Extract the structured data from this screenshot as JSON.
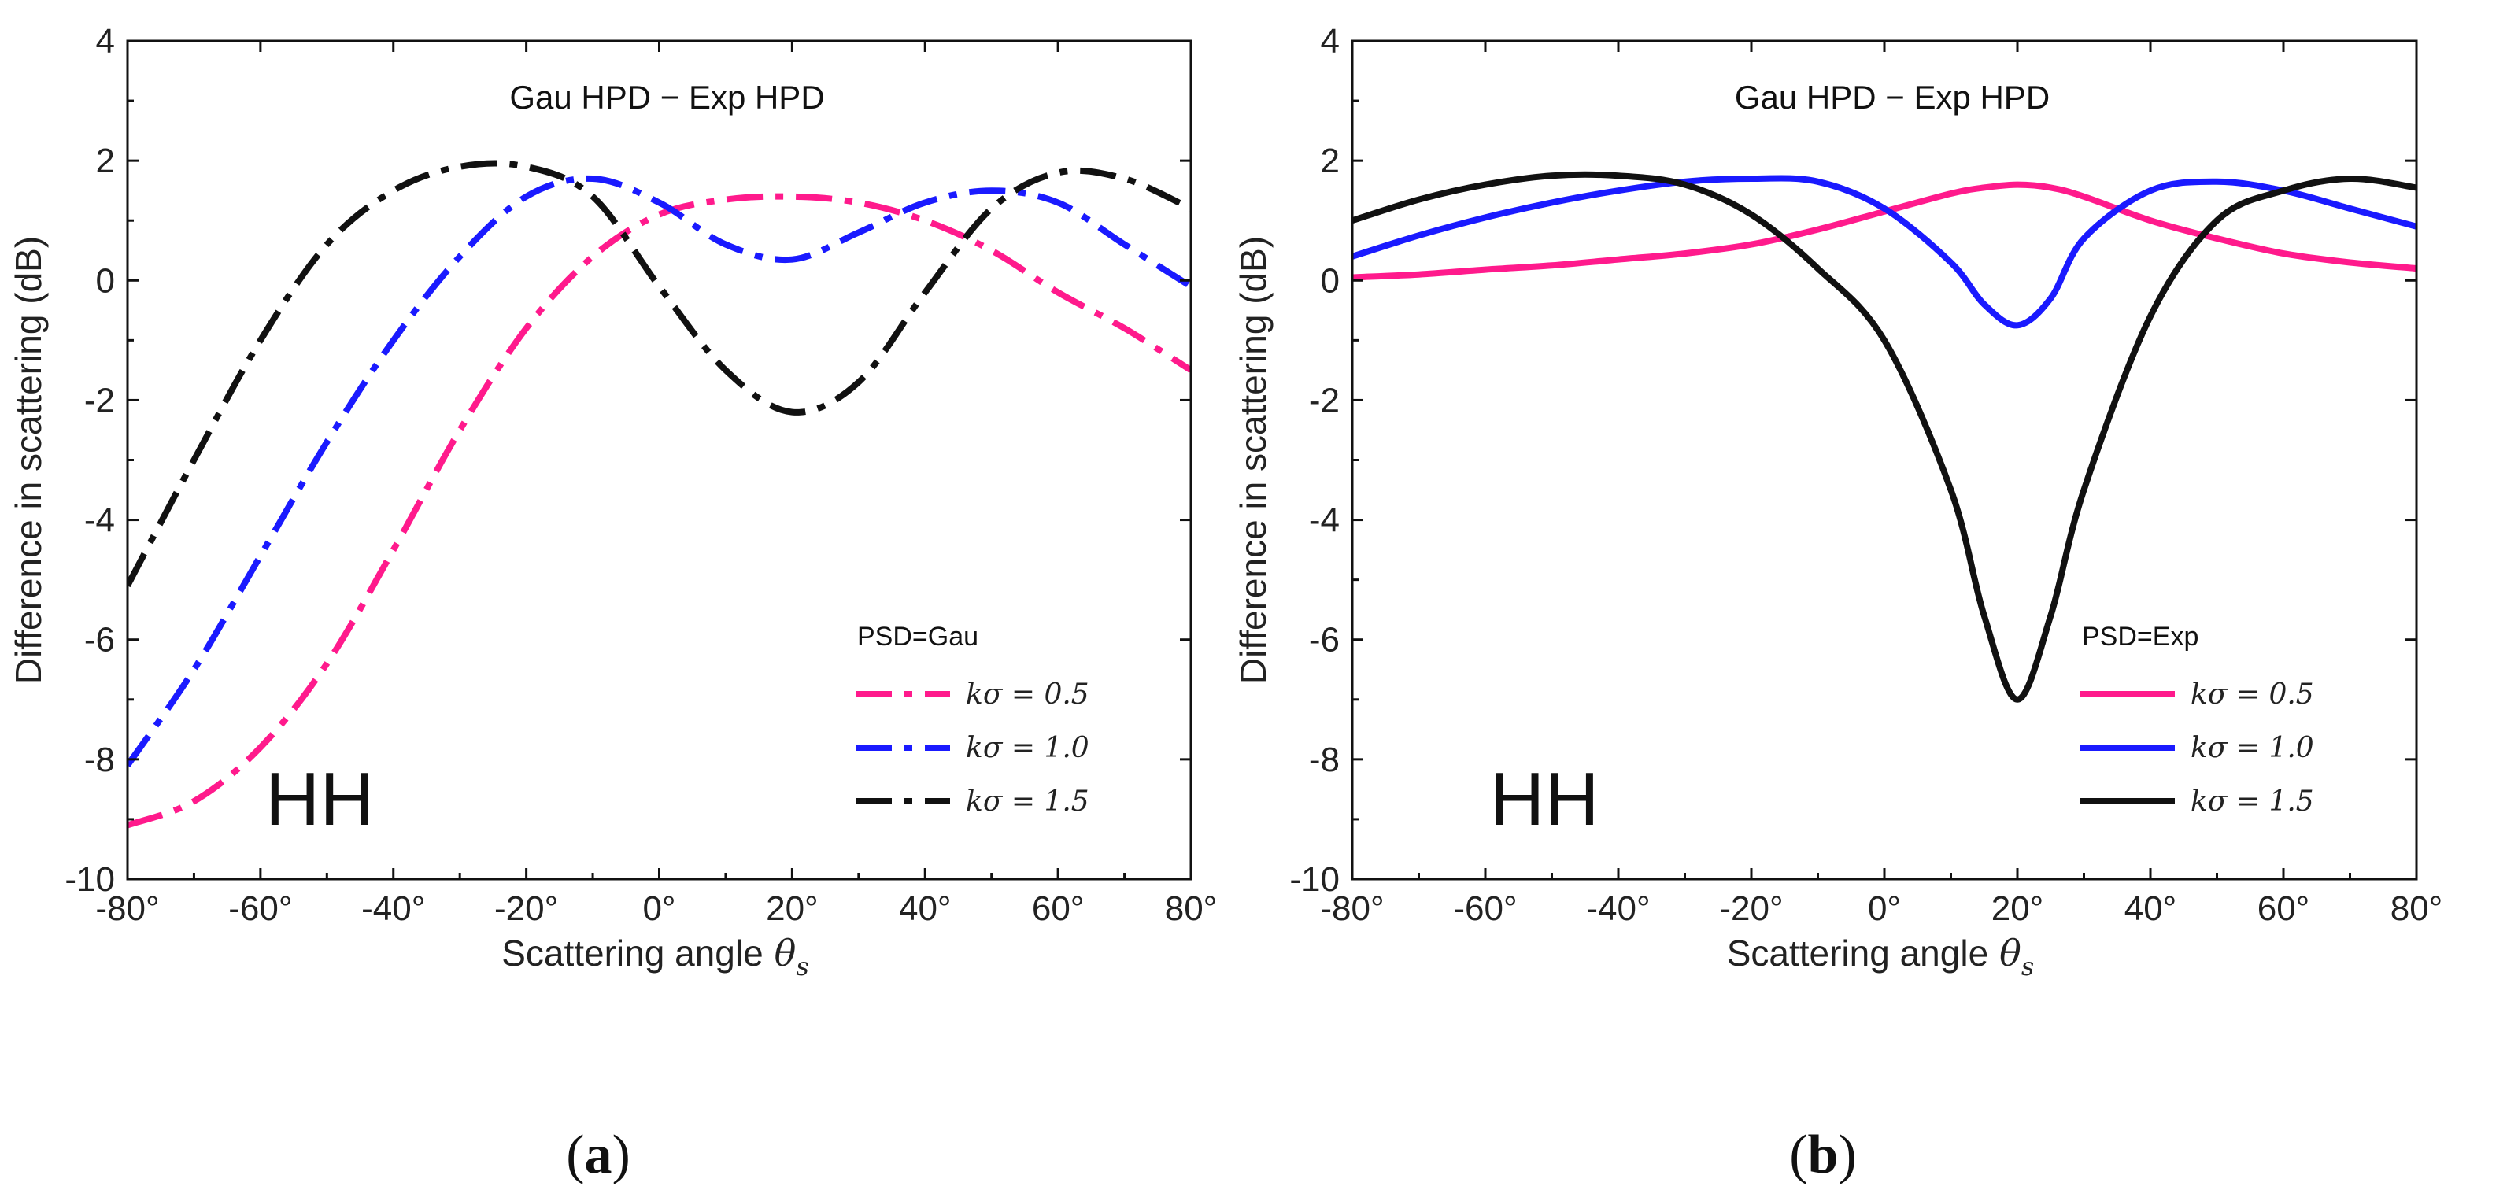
{
  "chart_data": [
    {
      "type": "line",
      "panel_label": "a",
      "title": "Gau HPD − Exp HPD",
      "annotation": "HH",
      "xlabel": "Scattering angle",
      "xlabel_symbol": "θ",
      "xlabel_subscript": "s",
      "ylabel": "Difference in scattering (dB)",
      "xlim": [
        -80,
        80
      ],
      "ylim": [
        -10,
        4
      ],
      "xticks": [
        -80,
        -60,
        -40,
        -20,
        0,
        20,
        40,
        60,
        80
      ],
      "xtick_labels": [
        "-80°",
        "-60°",
        "-40°",
        "-20°",
        "0°",
        "20°",
        "40°",
        "60°",
        "80°"
      ],
      "yticks": [
        -10,
        -8,
        -6,
        -4,
        -2,
        0,
        2,
        4
      ],
      "ytick_labels": [
        "-10",
        "-8",
        "-6",
        "-4",
        "-2",
        "0",
        "2",
        "4"
      ],
      "legend_title": "PSD=Gau",
      "legend_position": "bottom-right",
      "line_style": "dash-dot",
      "x": [
        -80,
        -70,
        -60,
        -50,
        -40,
        -30,
        -20,
        -10,
        0,
        10,
        20,
        30,
        40,
        50,
        60,
        70,
        80
      ],
      "series": [
        {
          "name": "kσ = 0.5",
          "color": "#ff1a8c",
          "values": [
            -9.1,
            -8.7,
            -7.8,
            -6.4,
            -4.5,
            -2.5,
            -0.8,
            0.4,
            1.1,
            1.35,
            1.4,
            1.3,
            1.0,
            0.5,
            -0.2,
            -0.8,
            -1.5
          ]
        },
        {
          "name": "kσ = 1.0",
          "color": "#1a1aff",
          "values": [
            -8.1,
            -6.5,
            -4.6,
            -2.7,
            -1.0,
            0.4,
            1.4,
            1.7,
            1.3,
            0.6,
            0.35,
            0.8,
            1.3,
            1.5,
            1.3,
            0.6,
            -0.1
          ]
        },
        {
          "name": "kσ = 1.5",
          "color": "#111111",
          "values": [
            -5.1,
            -3.0,
            -1.0,
            0.6,
            1.5,
            1.9,
            1.9,
            1.4,
            -0.1,
            -1.5,
            -2.2,
            -1.7,
            -0.2,
            1.2,
            1.8,
            1.7,
            1.2
          ]
        }
      ]
    },
    {
      "type": "line",
      "panel_label": "b",
      "title": "Gau HPD − Exp HPD",
      "annotation": "HH",
      "xlabel": "Scattering angle",
      "xlabel_symbol": "θ",
      "xlabel_subscript": "s",
      "ylabel": "Difference in scattering (dB)",
      "xlim": [
        -80,
        80
      ],
      "ylim": [
        -10,
        4
      ],
      "xticks": [
        -80,
        -60,
        -40,
        -20,
        0,
        20,
        40,
        60,
        80
      ],
      "xtick_labels": [
        "-80°",
        "-60°",
        "-40°",
        "-20°",
        "0°",
        "20°",
        "40°",
        "60°",
        "80°"
      ],
      "yticks": [
        -10,
        -8,
        -6,
        -4,
        -2,
        0,
        2,
        4
      ],
      "ytick_labels": [
        "-10",
        "-8",
        "-6",
        "-4",
        "-2",
        "0",
        "2",
        "4"
      ],
      "legend_title": "PSD=Exp",
      "legend_position": "bottom-right",
      "line_style": "solid",
      "x": [
        -80,
        -70,
        -60,
        -50,
        -40,
        -30,
        -20,
        -10,
        0,
        10,
        15,
        20,
        25,
        30,
        40,
        50,
        60,
        70,
        80
      ],
      "series": [
        {
          "name": "kσ = 0.5",
          "color": "#ff1a8c",
          "values": [
            0.05,
            0.1,
            0.18,
            0.25,
            0.35,
            0.45,
            0.6,
            0.85,
            1.15,
            1.45,
            1.55,
            1.6,
            1.55,
            1.4,
            1.0,
            0.7,
            0.45,
            0.3,
            0.2
          ]
        },
        {
          "name": "kσ = 1.0",
          "color": "#1a1aff",
          "values": [
            0.4,
            0.75,
            1.05,
            1.3,
            1.5,
            1.65,
            1.7,
            1.65,
            1.2,
            0.3,
            -0.4,
            -0.75,
            -0.3,
            0.7,
            1.5,
            1.65,
            1.5,
            1.2,
            0.9
          ]
        },
        {
          "name": "kσ = 1.5",
          "color": "#111111",
          "values": [
            1.0,
            1.35,
            1.6,
            1.75,
            1.75,
            1.6,
            1.1,
            0.2,
            -1.0,
            -3.5,
            -5.6,
            -7.0,
            -5.6,
            -3.5,
            -0.6,
            1.0,
            1.5,
            1.7,
            1.55
          ]
        }
      ]
    }
  ]
}
